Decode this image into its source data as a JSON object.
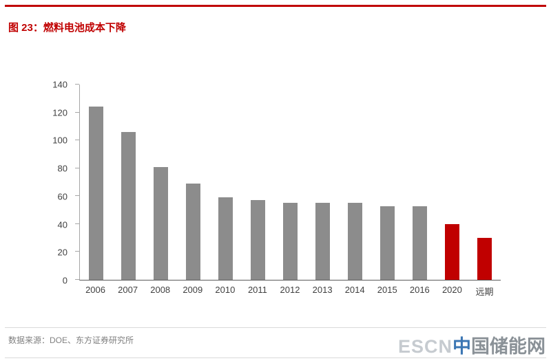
{
  "page": {
    "title": "图 23：燃料电池成本下降",
    "source": "数据来源：DOE、东方证券研究所"
  },
  "watermark": {
    "latin": "ESCN",
    "cn_first": "中",
    "cn_rest": "国储能网"
  },
  "colors": {
    "accent_red": "#c00000",
    "bar_gray": "#8c8c8c",
    "bar_red": "#c00000",
    "rule_gray": "#d9d9d9"
  },
  "chart_data": {
    "type": "bar",
    "title": "燃料电池成本下降",
    "categories": [
      "2006",
      "2007",
      "2008",
      "2009",
      "2010",
      "2011",
      "2012",
      "2013",
      "2014",
      "2015",
      "2016",
      "2020",
      "远期"
    ],
    "values": [
      124,
      106,
      81,
      69,
      59,
      57,
      55,
      55,
      55,
      53,
      53,
      40,
      30
    ],
    "bar_colors": [
      "gray",
      "gray",
      "gray",
      "gray",
      "gray",
      "gray",
      "gray",
      "gray",
      "gray",
      "gray",
      "gray",
      "red",
      "red"
    ],
    "xlabel": "",
    "ylabel": "",
    "ylim": [
      0,
      140
    ],
    "ytick_step": 20,
    "grid": false,
    "legend": "none"
  }
}
